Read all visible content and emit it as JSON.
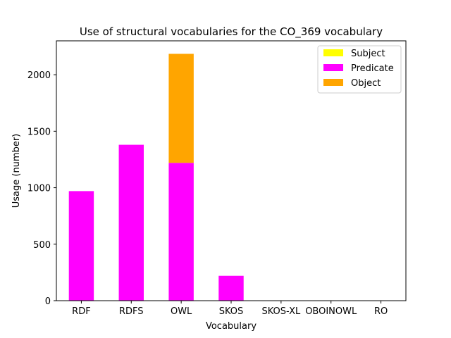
{
  "chart_data": {
    "type": "bar",
    "stacked": true,
    "title": "Use of structural vocabularies for the CO_369 vocabulary",
    "xlabel": "Vocabulary",
    "ylabel": "Usage (number)",
    "categories": [
      "RDF",
      "RDFS",
      "OWL",
      "SKOS",
      "SKOS-XL",
      "OBOINOWL",
      "RO"
    ],
    "series": [
      {
        "name": "Subject",
        "color": "#ffff00",
        "values": [
          0,
          0,
          0,
          0,
          0,
          0,
          0
        ]
      },
      {
        "name": "Predicate",
        "color": "#ff00ff",
        "values": [
          970,
          1380,
          1220,
          220,
          0,
          0,
          0
        ]
      },
      {
        "name": "Object",
        "color": "#ffa500",
        "values": [
          0,
          0,
          965,
          0,
          0,
          0,
          0
        ]
      }
    ],
    "ylim": [
      0,
      2300
    ],
    "yticks": [
      0,
      500,
      1000,
      1500,
      2000
    ],
    "grid": false,
    "legend_position": "top-right"
  }
}
